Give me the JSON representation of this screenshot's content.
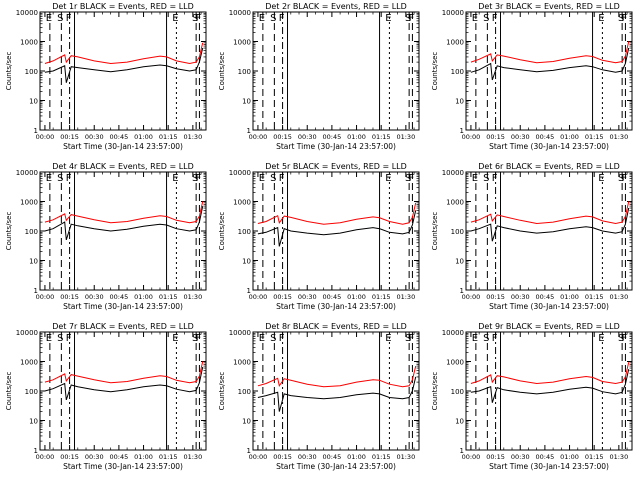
{
  "colors": {
    "background": "#ffffff",
    "axes": "#000000",
    "events": "#000000",
    "lld": "#ff0000"
  },
  "common": {
    "xlabel": "Start Time (30-Jan-14 23:57:00)",
    "ylabel": "Counts/sec",
    "x_ticks": [
      "00:00",
      "00:15",
      "00:30",
      "00:45",
      "01:00",
      "01:15",
      "01:30"
    ],
    "y_ticks": [
      "1",
      "10",
      "100",
      "1000",
      "10000"
    ],
    "y_scale": "log",
    "ylim": [
      1,
      10000
    ],
    "xlim_minutes": [
      -3,
      98
    ],
    "event_markers": [
      {
        "label": "E",
        "minute": 3,
        "style": "dashed"
      },
      {
        "label": "S",
        "minute": 10,
        "style": "dashed"
      },
      {
        "label": "F",
        "minute": 15,
        "style": "dashdot"
      },
      {
        "label": "",
        "minute": 18,
        "style": "solid"
      },
      {
        "label": "",
        "minute": 74,
        "style": "solid"
      },
      {
        "label": "E",
        "minute": 80,
        "style": "dotted"
      },
      {
        "label": "S",
        "minute": 92,
        "style": "dashed"
      },
      {
        "label": "F",
        "minute": 94,
        "style": "dashed"
      }
    ]
  },
  "chart_data": [
    {
      "type": "line",
      "title": "Det 1r BLACK = Events, RED = LLD",
      "series": [
        {
          "name": "BLACK = Events",
          "color": "#000000",
          "minutes": [
            0,
            5,
            12,
            13,
            16,
            20,
            30,
            40,
            50,
            60,
            70,
            74,
            80,
            88,
            92,
            94,
            96
          ],
          "values": [
            90,
            100,
            150,
            40,
            140,
            130,
            110,
            95,
            110,
            140,
            160,
            150,
            120,
            100,
            110,
            200,
            600
          ]
        },
        {
          "name": "RED = LLD",
          "color": "#ff0000",
          "minutes": [
            0,
            5,
            12,
            13,
            16,
            20,
            30,
            40,
            50,
            60,
            70,
            74,
            80,
            88,
            92,
            94,
            96
          ],
          "values": [
            180,
            220,
            350,
            200,
            330,
            300,
            220,
            180,
            200,
            260,
            320,
            300,
            220,
            180,
            200,
            300,
            900
          ]
        }
      ]
    },
    {
      "type": "line",
      "title": "Det 2r BLACK = Events, RED = LLD",
      "series": []
    },
    {
      "type": "line",
      "title": "Det 3r BLACK = Events, RED = LLD",
      "series": [
        {
          "name": "BLACK = Events",
          "color": "#000000",
          "minutes": [
            0,
            5,
            12,
            13,
            16,
            20,
            30,
            40,
            50,
            60,
            70,
            74,
            80,
            88,
            92,
            94,
            96
          ],
          "values": [
            90,
            110,
            180,
            50,
            150,
            130,
            110,
            95,
            105,
            130,
            150,
            140,
            110,
            90,
            100,
            180,
            600
          ]
        },
        {
          "name": "RED = LLD",
          "color": "#ff0000",
          "minutes": [
            0,
            5,
            12,
            13,
            16,
            20,
            30,
            40,
            50,
            60,
            70,
            74,
            80,
            88,
            92,
            94,
            96
          ],
          "values": [
            200,
            250,
            380,
            220,
            350,
            320,
            240,
            190,
            210,
            270,
            330,
            310,
            230,
            190,
            210,
            320,
            1000
          ]
        }
      ]
    },
    {
      "type": "line",
      "title": "Det 4r BLACK = Events, RED = LLD",
      "series": [
        {
          "name": "BLACK = Events",
          "color": "#000000",
          "minutes": [
            0,
            5,
            12,
            13,
            16,
            20,
            30,
            40,
            50,
            60,
            70,
            74,
            80,
            88,
            92,
            94,
            96
          ],
          "values": [
            100,
            120,
            200,
            50,
            170,
            150,
            120,
            100,
            115,
            145,
            170,
            160,
            120,
            100,
            110,
            200,
            700
          ]
        },
        {
          "name": "RED = LLD",
          "color": "#ff0000",
          "minutes": [
            0,
            5,
            12,
            13,
            16,
            20,
            30,
            40,
            50,
            60,
            70,
            74,
            80,
            88,
            92,
            94,
            96
          ],
          "values": [
            200,
            240,
            380,
            230,
            360,
            320,
            240,
            190,
            210,
            270,
            330,
            310,
            230,
            190,
            210,
            320,
            1000
          ]
        }
      ]
    },
    {
      "type": "line",
      "title": "Det 5r BLACK = Events, RED = LLD",
      "series": [
        {
          "name": "BLACK = Events",
          "color": "#000000",
          "minutes": [
            0,
            5,
            12,
            13,
            16,
            20,
            30,
            40,
            50,
            60,
            70,
            74,
            80,
            88,
            92,
            94,
            96
          ],
          "values": [
            80,
            90,
            130,
            30,
            120,
            100,
            85,
            75,
            85,
            110,
            130,
            120,
            90,
            80,
            90,
            160,
            500
          ]
        },
        {
          "name": "RED = LLD",
          "color": "#ff0000",
          "minutes": [
            0,
            5,
            12,
            13,
            16,
            20,
            30,
            40,
            50,
            60,
            70,
            74,
            80,
            88,
            92,
            94,
            96
          ],
          "values": [
            180,
            210,
            330,
            190,
            320,
            290,
            210,
            170,
            190,
            250,
            300,
            280,
            210,
            170,
            190,
            290,
            900
          ]
        }
      ]
    },
    {
      "type": "line",
      "title": "Det 6r BLACK = Events, RED = LLD",
      "series": [
        {
          "name": "BLACK = Events",
          "color": "#000000",
          "minutes": [
            0,
            5,
            12,
            13,
            16,
            20,
            30,
            40,
            50,
            60,
            70,
            74,
            80,
            88,
            92,
            94,
            96
          ],
          "values": [
            100,
            120,
            170,
            45,
            150,
            130,
            100,
            85,
            95,
            120,
            140,
            130,
            100,
            85,
            95,
            170,
            600
          ]
        },
        {
          "name": "RED = LLD",
          "color": "#ff0000",
          "minutes": [
            0,
            5,
            12,
            13,
            16,
            20,
            30,
            40,
            50,
            60,
            70,
            74,
            80,
            88,
            92,
            94,
            96
          ],
          "values": [
            200,
            240,
            370,
            220,
            350,
            310,
            230,
            180,
            200,
            260,
            320,
            300,
            220,
            180,
            200,
            310,
            1000
          ]
        }
      ]
    },
    {
      "type": "line",
      "title": "Det 7r BLACK = Events, RED = LLD",
      "series": [
        {
          "name": "BLACK = Events",
          "color": "#000000",
          "minutes": [
            0,
            5,
            12,
            13,
            16,
            20,
            30,
            40,
            50,
            60,
            70,
            74,
            80,
            88,
            92,
            94,
            96
          ],
          "values": [
            100,
            120,
            180,
            50,
            160,
            140,
            110,
            95,
            110,
            140,
            160,
            150,
            115,
            95,
            105,
            190,
            650
          ]
        },
        {
          "name": "RED = LLD",
          "color": "#ff0000",
          "minutes": [
            0,
            5,
            12,
            13,
            16,
            20,
            30,
            40,
            50,
            60,
            70,
            74,
            80,
            88,
            92,
            94,
            96
          ],
          "values": [
            200,
            240,
            380,
            220,
            360,
            320,
            240,
            190,
            210,
            270,
            330,
            310,
            230,
            190,
            210,
            320,
            1000
          ]
        }
      ]
    },
    {
      "type": "line",
      "title": "Det 8r BLACK = Events, RED = LLD",
      "series": [
        {
          "name": "BLACK = Events",
          "color": "#000000",
          "minutes": [
            0,
            5,
            12,
            13,
            16,
            20,
            30,
            40,
            50,
            60,
            70,
            74,
            80,
            88,
            92,
            94,
            96
          ],
          "values": [
            60,
            70,
            90,
            20,
            80,
            70,
            60,
            55,
            60,
            75,
            85,
            80,
            60,
            55,
            60,
            100,
            300
          ]
        },
        {
          "name": "RED = LLD",
          "color": "#ff0000",
          "minutes": [
            0,
            5,
            12,
            13,
            16,
            20,
            30,
            40,
            50,
            60,
            70,
            74,
            80,
            88,
            92,
            94,
            96
          ],
          "values": [
            150,
            180,
            270,
            150,
            260,
            230,
            170,
            140,
            150,
            200,
            240,
            230,
            170,
            140,
            150,
            240,
            700
          ]
        }
      ]
    },
    {
      "type": "line",
      "title": "Det 9r BLACK = Events, RED = LLD",
      "series": [
        {
          "name": "BLACK = Events",
          "color": "#000000",
          "minutes": [
            0,
            5,
            12,
            13,
            16,
            20,
            30,
            40,
            50,
            60,
            70,
            74,
            80,
            88,
            92,
            94,
            96
          ],
          "values": [
            90,
            100,
            140,
            40,
            130,
            110,
            90,
            80,
            90,
            115,
            135,
            125,
            95,
            80,
            90,
            170,
            550
          ]
        },
        {
          "name": "RED = LLD",
          "color": "#ff0000",
          "minutes": [
            0,
            5,
            12,
            13,
            16,
            20,
            30,
            40,
            50,
            60,
            70,
            74,
            80,
            88,
            92,
            94,
            96
          ],
          "values": [
            180,
            220,
            350,
            200,
            330,
            300,
            220,
            180,
            200,
            260,
            310,
            290,
            210,
            180,
            200,
            300,
            950
          ]
        }
      ]
    }
  ]
}
